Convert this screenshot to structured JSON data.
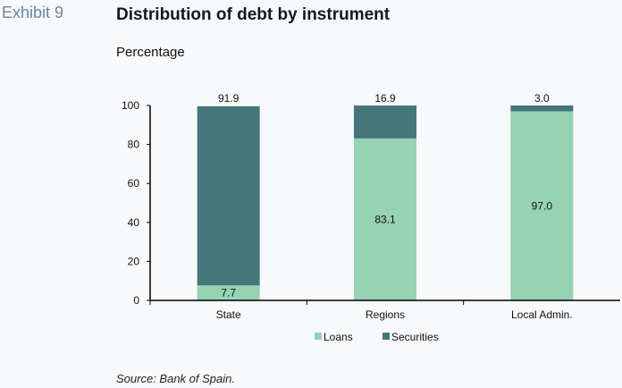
{
  "exhibit_label": "Exhibit 9",
  "chart_data": {
    "type": "bar",
    "stacked": true,
    "title": "Distribution of debt by instrument",
    "subtitle": "Percentage",
    "categories": [
      "State",
      "Regions",
      "Local Admin."
    ],
    "series": [
      {
        "name": "Loans",
        "color": "#96d2b4",
        "values": [
          7.7,
          83.1,
          97.0
        ],
        "labels": [
          "7.7",
          "83.1",
          "97.0"
        ]
      },
      {
        "name": "Securities",
        "color": "#44767b",
        "values": [
          91.9,
          16.9,
          3.0
        ],
        "labels": [
          "91.9",
          "16.9",
          "3.0"
        ]
      }
    ],
    "ylim": [
      0,
      100
    ],
    "yticks": [
      "0",
      "20",
      "40",
      "60",
      "80",
      "100"
    ],
    "xlabel": "",
    "ylabel": "",
    "grid": false,
    "legend": "bottom"
  },
  "source": "Source: Bank of Spain."
}
